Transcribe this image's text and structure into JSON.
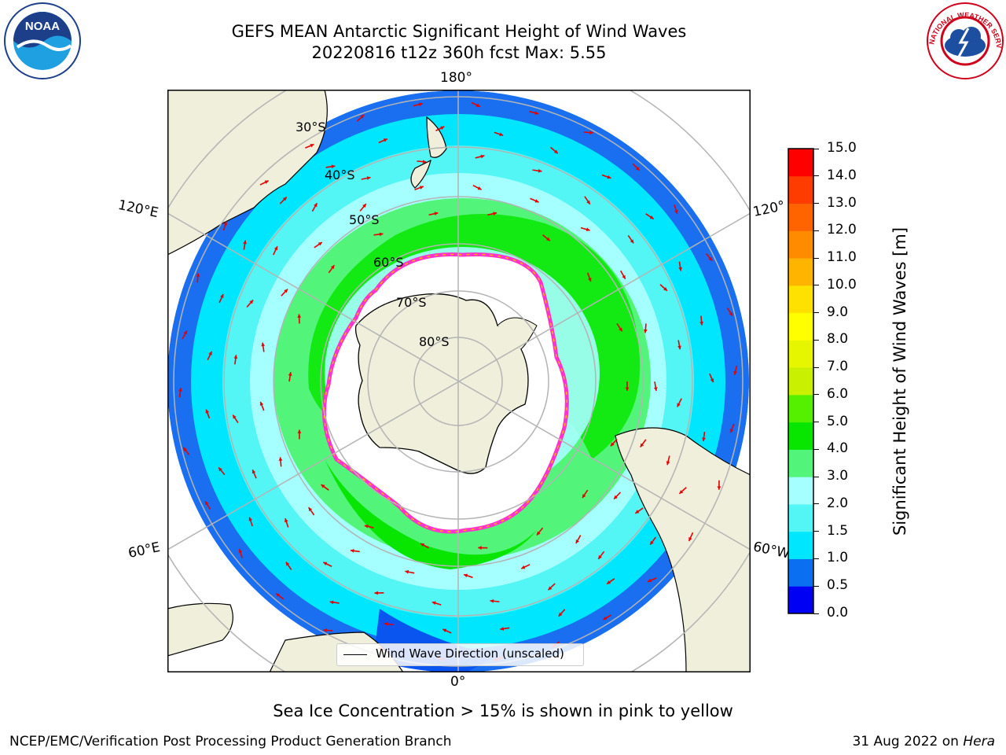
{
  "title": {
    "line1": "GEFS MEAN Antarctic Significant Height of Wind Waves",
    "line2": "20220816 t12z 360h fcst   Max: 5.55"
  },
  "map": {
    "longitude_labels": {
      "top": "180°",
      "bottom": "0°",
      "upper_left": "120°E",
      "upper_right": "120°",
      "lower_left": "60°E",
      "lower_right": "60°W"
    },
    "latitude_labels": [
      "30°S",
      "40°S",
      "50°S",
      "60°S",
      "70°S",
      "80°S"
    ],
    "legend": "Wind Wave Direction (unscaled)"
  },
  "colorbar": {
    "label": "Significant Height of Wind Waves [m]",
    "ticks": [
      "0.0",
      "0.5",
      "1.0",
      "1.5",
      "2.0",
      "3.0",
      "4.0",
      "5.0",
      "6.0",
      "7.0",
      "8.0",
      "9.0",
      "10.0",
      "11.0",
      "12.0",
      "13.0",
      "14.0",
      "15.0"
    ],
    "colors": [
      "#0000f5",
      "#0a6ff0",
      "#00e6ff",
      "#54f5f5",
      "#a6ffff",
      "#52f57a",
      "#08e600",
      "#55f000",
      "#c8f000",
      "#e6f500",
      "#ffff00",
      "#ffe100",
      "#ffb400",
      "#ff8c00",
      "#ff6400",
      "#ff3c00",
      "#ff0000"
    ]
  },
  "colors": {
    "land": "#efefdc",
    "ice": "#ff33cc",
    "arrow": "#e60000",
    "grid": "#b4b4b4"
  },
  "logos": {
    "left": "NOAA",
    "right": "NATIONAL WEATHER SERVICE"
  },
  "subtitle": "Sea Ice Concentration > 15% is shown in pink to yellow",
  "footer": {
    "left": "NCEP/EMC/Verification Post Processing Product Generation Branch",
    "right_date": "31 Aug 2022 on ",
    "right_host": "Hera"
  }
}
